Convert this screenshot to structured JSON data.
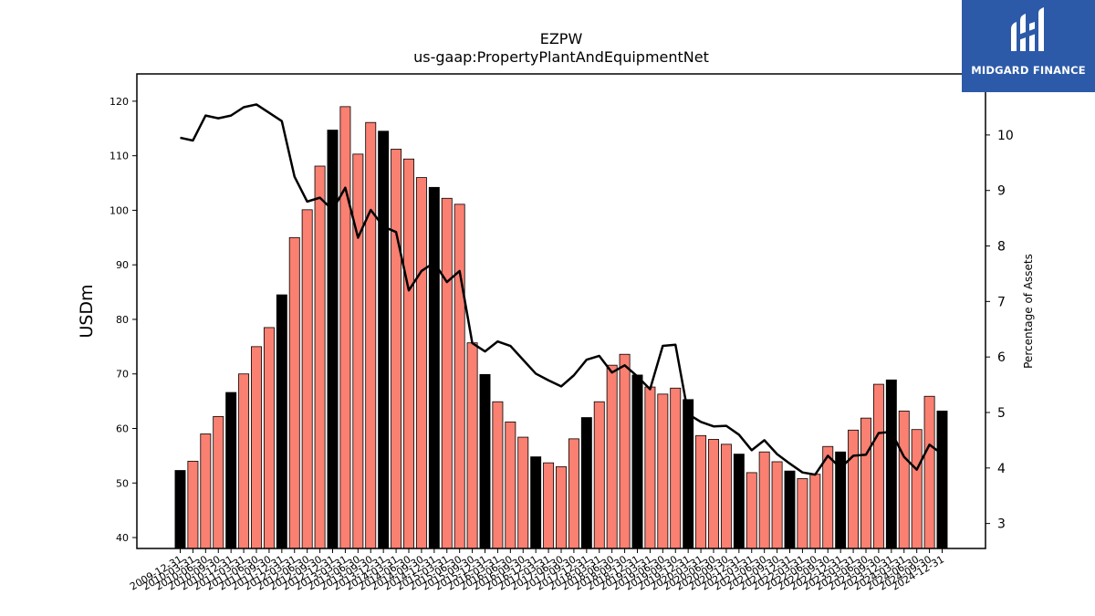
{
  "brand": {
    "name": "MIDGARD FINANCE",
    "color": "#2c5aa8"
  },
  "chart_data": {
    "type": "bar",
    "title": "EZPW",
    "subtitle": "us-gaap:PropertyPlantAndEquipmentNet",
    "ylabel": "USDm",
    "y2label": "Percentage of Assets",
    "ylim": [
      38,
      125
    ],
    "y2lim": [
      2.55,
      11.1
    ],
    "yticks": [
      40,
      50,
      60,
      70,
      80,
      90,
      100,
      110,
      120
    ],
    "y2ticks": [
      3,
      4,
      5,
      6,
      7,
      8,
      9,
      10
    ],
    "grid": false,
    "colors": {
      "bar": "#fa8072",
      "bar_fiscal_year_end": "#000000",
      "line": "#000000"
    },
    "categories": [
      "2009-12-31",
      "2010-03-31",
      "2010-06-30",
      "2010-09-30",
      "2010-12-31",
      "2011-03-31",
      "2011-06-30",
      "2011-09-30",
      "2011-12-31",
      "2012-03-31",
      "2012-06-30",
      "2012-09-30",
      "2012-12-31",
      "2013-03-31",
      "2013-06-30",
      "2013-09-30",
      "2013-12-31",
      "2014-03-31",
      "2014-06-30",
      "2014-09-30",
      "2014-12-31",
      "2015-03-31",
      "2015-06-30",
      "2015-09-30",
      "2015-12-31",
      "2016-03-31",
      "2016-06-30",
      "2016-09-30",
      "2016-12-31",
      "2017-03-31",
      "2017-06-30",
      "2017-09-30",
      "2017-12-31",
      "2018-03-31",
      "2018-06-30",
      "2018-09-30",
      "2018-12-31",
      "2019-03-31",
      "2019-06-30",
      "2019-09-30",
      "2019-12-31",
      "2020-03-31",
      "2020-06-30",
      "2020-09-30",
      "2020-12-31",
      "2021-03-31",
      "2021-06-30",
      "2021-09-30",
      "2021-12-31",
      "2022-03-31",
      "2022-06-30",
      "2022-09-30",
      "2022-12-31",
      "2023-03-31",
      "2023-06-30",
      "2023-09-30",
      "2023-12-31",
      "2024-03-31",
      "2024-06-30",
      "2024-09-30",
      "2024-12-31"
    ],
    "series": [
      {
        "name": "",
        "kind": "bar",
        "axis": "left",
        "values": [
          52.3,
          54.0,
          59.0,
          62.2,
          66.6,
          70.0,
          75.0,
          78.5,
          84.5,
          95.0,
          100.1,
          108.1,
          114.7,
          119.0,
          110.3,
          116.1,
          114.5,
          111.2,
          109.4,
          106.0,
          104.2,
          102.2,
          101.1,
          75.7,
          69.9,
          64.9,
          61.2,
          58.4,
          54.8,
          53.7,
          53.0,
          58.1,
          62.0,
          64.9,
          71.6,
          73.6,
          69.8,
          67.6,
          66.3,
          67.4,
          65.3,
          58.7,
          58.0,
          57.1,
          55.3,
          51.9,
          55.7,
          53.9,
          52.2,
          50.8,
          51.6,
          56.7,
          55.7,
          59.7,
          61.9,
          68.1,
          68.9,
          63.2,
          59.8,
          65.9,
          63.2
        ],
        "fiscal_year_end_mask": [
          1,
          0,
          0,
          0,
          1,
          0,
          0,
          0,
          1,
          0,
          0,
          0,
          1,
          0,
          0,
          0,
          1,
          0,
          0,
          0,
          1,
          0,
          0,
          0,
          1,
          0,
          0,
          0,
          1,
          0,
          0,
          0,
          1,
          0,
          0,
          0,
          1,
          0,
          0,
          0,
          1,
          0,
          0,
          0,
          1,
          0,
          0,
          0,
          1,
          0,
          0,
          0,
          1,
          0,
          0,
          0,
          1,
          0,
          0,
          0,
          1
        ]
      },
      {
        "name": "",
        "kind": "line",
        "axis": "right",
        "values": [
          9.95,
          9.9,
          10.35,
          10.3,
          10.35,
          10.5,
          10.55,
          10.4,
          10.25,
          9.25,
          8.8,
          8.87,
          8.65,
          9.05,
          8.15,
          8.65,
          8.35,
          8.25,
          7.2,
          7.55,
          7.7,
          7.35,
          7.55,
          6.25,
          6.1,
          6.28,
          6.2,
          5.95,
          5.7,
          5.58,
          5.47,
          5.67,
          5.95,
          6.02,
          5.72,
          5.85,
          5.65,
          5.42,
          6.2,
          6.22,
          4.97,
          4.83,
          4.75,
          4.76,
          4.6,
          4.32,
          4.5,
          4.25,
          4.08,
          3.92,
          3.88,
          4.22,
          4.0,
          4.22,
          4.24,
          4.63,
          4.65,
          4.2,
          3.97,
          4.42,
          4.25
        ]
      }
    ]
  }
}
